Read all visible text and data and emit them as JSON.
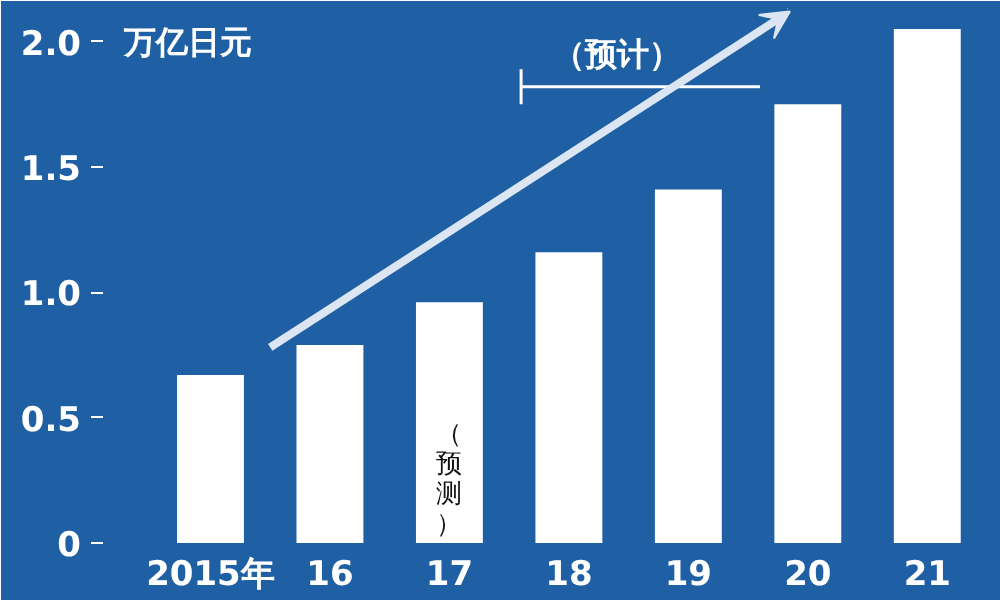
{
  "chart_data": {
    "type": "bar",
    "ylabel": "万亿日元",
    "categories": [
      "2015年",
      "16",
      "17",
      "18",
      "19",
      "20",
      "21"
    ],
    "values": [
      0.67,
      0.79,
      0.96,
      1.16,
      1.41,
      1.75,
      2.05
    ],
    "color": "#ffffff",
    "ylim": [
      0,
      2.13
    ],
    "yticks": [
      0,
      0.5,
      {
        "value": 1.0,
        "label": "1.0"
      },
      1.5,
      {
        "value": 2.0,
        "label": "2.0"
      }
    ],
    "grid": false,
    "annotations": [
      "（预测）",
      "（预计）"
    ]
  }
}
